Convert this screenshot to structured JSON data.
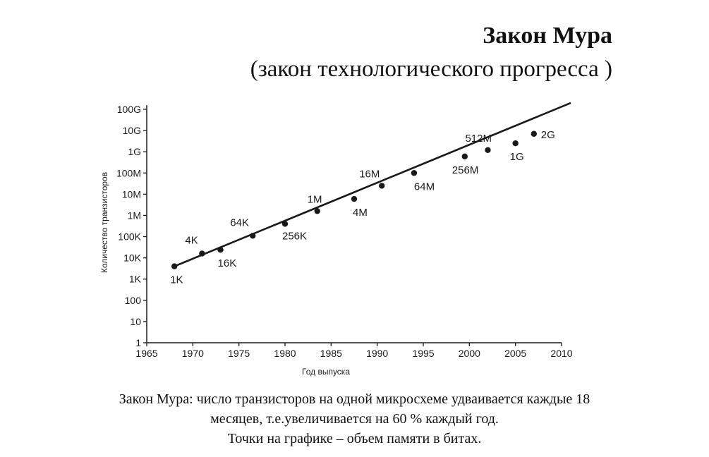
{
  "title": "Закон Мура",
  "subtitle": "(закон технологического прогресса )",
  "caption": {
    "line1": "Закон Мура: число транзисторов на одной микросхеме удваивается каждые 18",
    "line2": "месяцев, т.е.увеличивается на 60 % каждый год.",
    "line3": "Точки на графике –  объем памяти в битах."
  },
  "chart_data": {
    "type": "scatter",
    "xlabel": "Год выпуска",
    "ylabel": "Количество транзисторов",
    "xlim": [
      1965,
      2010
    ],
    "y_scale": "log",
    "ylim_exponent": [
      0,
      11
    ],
    "x_ticks": [
      "1965",
      "1970",
      "1975",
      "1980",
      "1985",
      "1990",
      "1995",
      "2000",
      "2005",
      "2010"
    ],
    "y_ticks": [
      "1",
      "10",
      "100",
      "1K",
      "10K",
      "100K",
      "1M",
      "10M",
      "100M",
      "1G",
      "10G",
      "100G"
    ],
    "points": [
      {
        "year": 1968,
        "value": 4000,
        "label": "1K"
      },
      {
        "year": 1971,
        "value": 16000,
        "label": "4K"
      },
      {
        "year": 1973,
        "value": 24000,
        "label": "16K"
      },
      {
        "year": 1976.5,
        "value": 110000,
        "label": "64K"
      },
      {
        "year": 1980,
        "value": 400000,
        "label": "256K"
      },
      {
        "year": 1983.5,
        "value": 1600000,
        "label": "1M"
      },
      {
        "year": 1987.5,
        "value": 6000000,
        "label": "4M"
      },
      {
        "year": 1990.5,
        "value": 25000000,
        "label": "16M"
      },
      {
        "year": 1994,
        "value": 100000000,
        "label": "64M"
      },
      {
        "year": 1999.5,
        "value": 600000000,
        "label": "256M"
      },
      {
        "year": 2002,
        "value": 1200000000,
        "label": "512M"
      },
      {
        "year": 2005,
        "value": 2500000000,
        "label": "1G"
      },
      {
        "year": 2007,
        "value": 7000000000,
        "label": "2G"
      }
    ],
    "trend_line": {
      "x": [
        1968,
        2011
      ],
      "y": [
        4000,
        200000000000
      ]
    },
    "grid": false,
    "colors": {
      "ink": "#1a1a1a"
    }
  }
}
